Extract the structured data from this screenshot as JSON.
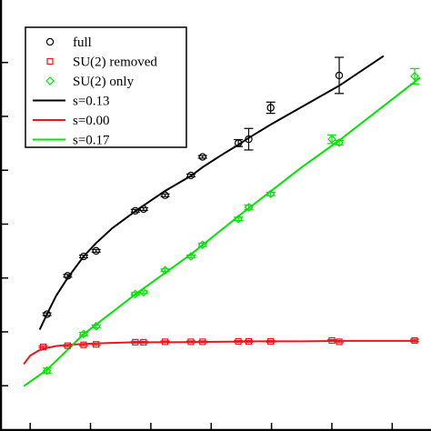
{
  "chart_data": {
    "type": "scatter",
    "title": "",
    "xlabel": "",
    "ylabel": "",
    "xlim": [
      0,
      1
    ],
    "ylim": [
      0,
      1
    ],
    "x_tick_values": [
      0.07,
      0.21,
      0.35,
      0.49,
      0.63,
      0.77,
      0.91
    ],
    "y_tick_values": [
      0.105,
      0.23,
      0.355,
      0.48,
      0.605,
      0.73,
      0.855
    ],
    "grid": false,
    "legend_position": "top-left",
    "series": [
      {
        "name": "full",
        "kind": "points",
        "marker": "circle",
        "color": "#000000",
        "x": [
          0.109,
          0.157,
          0.194,
          0.223,
          0.314,
          0.333,
          0.383,
          0.443,
          0.47,
          0.553,
          0.577,
          0.628,
          0.787
        ],
        "y": [
          0.271,
          0.36,
          0.405,
          0.418,
          0.511,
          0.515,
          0.547,
          0.593,
          0.636,
          0.668,
          0.677,
          0.75,
          0.825
        ],
        "err": [
          0.003,
          0.003,
          0.003,
          0.003,
          0.003,
          0.003,
          0.003,
          0.003,
          0.003,
          0.008,
          0.025,
          0.013,
          0.042
        ]
      },
      {
        "name": "SU(2) removed",
        "kind": "points",
        "marker": "square",
        "color": "#e8191e",
        "x": [
          0.1,
          0.157,
          0.194,
          0.223,
          0.314,
          0.333,
          0.383,
          0.443,
          0.47,
          0.553,
          0.577,
          0.628,
          0.77,
          0.787,
          0.962
        ],
        "y": [
          0.195,
          0.198,
          0.2,
          0.201,
          0.206,
          0.206,
          0.207,
          0.207,
          0.207,
          0.208,
          0.208,
          0.208,
          0.21,
          0.207,
          0.21
        ],
        "err": [
          0.002,
          0.002,
          0.002,
          0.002,
          0.002,
          0.002,
          0.002,
          0.002,
          0.002,
          0.002,
          0.002,
          0.002,
          0.002,
          0.002,
          0.003
        ]
      },
      {
        "name": "SU(2) only",
        "kind": "points",
        "marker": "diamond",
        "color": "#00e400",
        "x": [
          0.109,
          0.194,
          0.223,
          0.314,
          0.333,
          0.383,
          0.443,
          0.47,
          0.553,
          0.577,
          0.628,
          0.77,
          0.787,
          0.962
        ],
        "y": [
          0.14,
          0.225,
          0.243,
          0.318,
          0.322,
          0.373,
          0.405,
          0.432,
          0.492,
          0.519,
          0.55,
          0.677,
          0.669,
          0.823
        ],
        "err": [
          0.006,
          0.004,
          0.003,
          0.003,
          0.003,
          0.003,
          0.003,
          0.004,
          0.004,
          0.005,
          0.004,
          0.01,
          0.005,
          0.018
        ]
      },
      {
        "name": "s=0.13",
        "kind": "line",
        "color": "#000000",
        "x": [
          0.092,
          0.109,
          0.13,
          0.157,
          0.194,
          0.223,
          0.26,
          0.314,
          0.333,
          0.383,
          0.443,
          0.47,
          0.52,
          0.553,
          0.577,
          0.628,
          0.7,
          0.787,
          0.89
        ],
        "y": [
          0.235,
          0.271,
          0.313,
          0.355,
          0.405,
          0.436,
          0.47,
          0.51,
          0.523,
          0.557,
          0.592,
          0.612,
          0.644,
          0.664,
          0.68,
          0.711,
          0.752,
          0.801,
          0.87
        ]
      },
      {
        "name": "s=0.00",
        "kind": "line",
        "color": "#e8191e",
        "x": [
          0.055,
          0.07,
          0.09,
          0.11,
          0.13,
          0.157,
          0.194,
          0.25,
          0.314,
          0.4,
          0.5,
          0.6,
          0.7,
          0.8,
          0.9,
          0.97
        ],
        "y": [
          0.155,
          0.175,
          0.187,
          0.193,
          0.197,
          0.2,
          0.202,
          0.204,
          0.206,
          0.206,
          0.207,
          0.208,
          0.208,
          0.209,
          0.209,
          0.209
        ]
      },
      {
        "name": "s=0.17",
        "kind": "line",
        "color": "#00e400",
        "x": [
          0.055,
          0.109,
          0.194,
          0.314,
          0.443,
          0.553,
          0.7,
          0.787,
          0.975
        ],
        "y": [
          0.104,
          0.142,
          0.225,
          0.317,
          0.41,
          0.498,
          0.612,
          0.674,
          0.82
        ]
      }
    ]
  }
}
